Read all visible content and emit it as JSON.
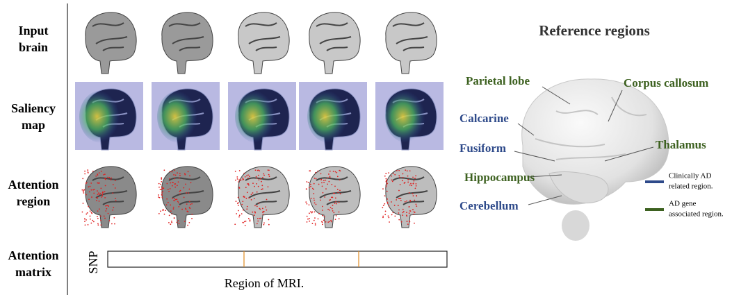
{
  "row_labels": [
    [
      "Input",
      "brain"
    ],
    [
      "Saliency",
      "map"
    ],
    [
      "Attention",
      "region"
    ],
    [
      "Attention",
      "matrix"
    ]
  ],
  "matrix": {
    "y_label": "SNP",
    "x_label": "Region of MRI."
  },
  "reference": {
    "title": "Reference regions",
    "regions": [
      {
        "label": "Parietal lobe",
        "kind": "gene"
      },
      {
        "label": "Corpus callosum",
        "kind": "gene"
      },
      {
        "label": "Calcarine",
        "kind": "clinical"
      },
      {
        "label": "Thalamus",
        "kind": "gene"
      },
      {
        "label": "Fusiform",
        "kind": "clinical"
      },
      {
        "label": "Hippocampus",
        "kind": "gene"
      },
      {
        "label": "Cerebellum",
        "kind": "clinical"
      }
    ],
    "legend": [
      {
        "kind": "clinical",
        "lines": [
          "Clinically AD",
          "related region."
        ]
      },
      {
        "kind": "gene",
        "lines": [
          "AD gene",
          "associated region."
        ]
      }
    ]
  }
}
